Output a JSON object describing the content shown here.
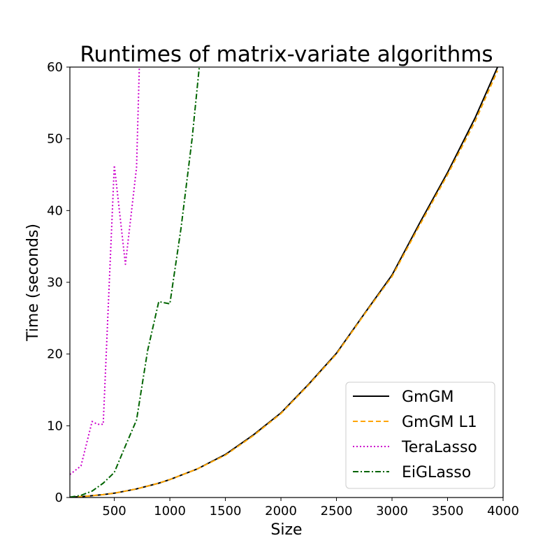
{
  "chart_data": {
    "type": "line",
    "title": "Runtimes of matrix-variate algorithms",
    "xlabel": "Size",
    "ylabel": "Time (seconds)",
    "xlim": [
      100,
      4000
    ],
    "ylim": [
      0,
      60
    ],
    "xticks": [
      500,
      1000,
      1500,
      2000,
      2500,
      3000,
      3500,
      4000
    ],
    "yticks": [
      0,
      10,
      20,
      30,
      40,
      50,
      60
    ],
    "grid": false,
    "legend_position": "lower-right",
    "series": [
      {
        "name": "GmGM",
        "color": "#000000",
        "style": "solid",
        "x": [
          100,
          200,
          300,
          400,
          500,
          600,
          700,
          800,
          900,
          1000,
          1250,
          1500,
          1750,
          2000,
          2250,
          2500,
          2750,
          3000,
          3250,
          3500,
          3750,
          3950
        ],
        "y": [
          0.05,
          0.12,
          0.25,
          0.4,
          0.6,
          0.9,
          1.2,
          1.6,
          2.0,
          2.5,
          4.0,
          6.0,
          8.7,
          11.8,
          15.8,
          20.1,
          25.6,
          31.0,
          38.3,
          45.3,
          53.0,
          60.0
        ]
      },
      {
        "name": "GmGM L1",
        "color": "#ffa500",
        "style": "dashed",
        "x": [
          100,
          200,
          300,
          400,
          500,
          600,
          700,
          800,
          900,
          1000,
          1250,
          1500,
          1750,
          2000,
          2250,
          2500,
          2750,
          3000,
          3250,
          3500,
          3750,
          3950
        ],
        "y": [
          0.05,
          0.12,
          0.25,
          0.4,
          0.6,
          0.9,
          1.2,
          1.6,
          2.0,
          2.5,
          4.0,
          5.9,
          8.6,
          11.7,
          15.7,
          20.0,
          25.5,
          30.8,
          38.0,
          45.0,
          52.5,
          59.5
        ]
      },
      {
        "name": "TeraLasso",
        "color": "#cc00cc",
        "style": "dotted",
        "x": [
          100,
          200,
          300,
          350,
          400,
          500,
          600,
          700,
          725
        ],
        "y": [
          3.2,
          4.4,
          10.6,
          10.2,
          10.2,
          46.3,
          32.5,
          46.0,
          60.0
        ]
      },
      {
        "name": "EiGLasso",
        "color": "#006400",
        "style": "dashdot",
        "x": [
          100,
          200,
          300,
          400,
          500,
          600,
          700,
          800,
          900,
          1000,
          1100,
          1200,
          1265
        ],
        "y": [
          0.05,
          0.3,
          0.9,
          2.0,
          3.5,
          7.2,
          10.8,
          20.5,
          27.3,
          27.0,
          37.5,
          50.0,
          60.0
        ]
      }
    ]
  }
}
